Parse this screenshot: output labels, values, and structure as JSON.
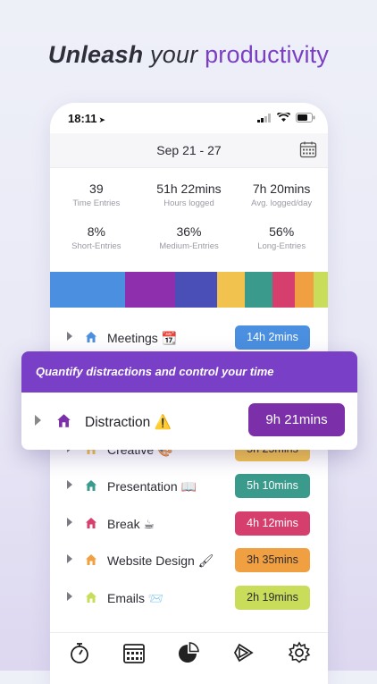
{
  "headline": {
    "part1": "Unleash",
    "part2": " your ",
    "part3": "productivity"
  },
  "status": {
    "time": "18:11",
    "location_icon": "location-arrow-icon"
  },
  "header": {
    "date_range": "Sep 21 - 27"
  },
  "stats": [
    {
      "value": "39",
      "label": "Time Entries"
    },
    {
      "value": "51h 22mins",
      "label": "Hours logged"
    },
    {
      "value": "7h 20mins",
      "label": "Avg. logged/day"
    },
    {
      "value": "8%",
      "label": "Short-Entries"
    },
    {
      "value": "36%",
      "label": "Medium-Entries"
    },
    {
      "value": "56%",
      "label": "Long-Entries"
    }
  ],
  "colorbar": [
    {
      "color": "#4a8fe0",
      "share": 0.27
    },
    {
      "color": "#8e2fad",
      "share": 0.18
    },
    {
      "color": "#4a4fb8",
      "share": 0.15
    },
    {
      "color": "#f2c24f",
      "share": 0.1
    },
    {
      "color": "#3a9a8c",
      "share": 0.1
    },
    {
      "color": "#d63e6e",
      "share": 0.08
    },
    {
      "color": "#f0a040",
      "share": 0.07
    },
    {
      "color": "#c9dd5a",
      "share": 0.05
    }
  ],
  "entries": [
    {
      "name": "Meetings 📆",
      "duration": "14h 2mins",
      "color": "#4a8fe0",
      "text": "#ffffff"
    },
    {
      "name": "",
      "duration": "",
      "color": "transparent",
      "text": "#ffffff"
    },
    {
      "name": "",
      "duration": "",
      "color": "transparent",
      "text": "#ffffff"
    },
    {
      "name": "Creative 🎨",
      "duration": "5h 25mins",
      "color": "#f2c24f",
      "text": "#2b2b33"
    },
    {
      "name": "Presentation 📖",
      "duration": "5h 10mins",
      "color": "#3a9a8c",
      "text": "#ffffff"
    },
    {
      "name": "Break ☕",
      "duration": "4h 12mins",
      "color": "#d63e6e",
      "text": "#ffffff"
    },
    {
      "name": "Website Design 🖌",
      "duration": "3h 35mins",
      "color": "#f0a040",
      "text": "#2b2b33"
    },
    {
      "name": "Emails 📨",
      "duration": "2h 19mins",
      "color": "#c9dd5a",
      "text": "#2b2b33"
    }
  ],
  "overlay": {
    "banner": "Quantify distractions and control your time",
    "name": "Distraction ⚠️",
    "duration": "9h 21mins",
    "color": "#7b2fa8"
  },
  "nav": [
    "stopwatch-icon",
    "calendar-icon",
    "pie-chart-icon",
    "play-icon",
    "settings-icon"
  ]
}
